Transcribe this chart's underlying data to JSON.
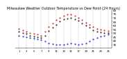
{
  "title": "Milwaukee Weather Outdoor Temperature vs Dew Point (24 Hours)",
  "title_fontsize": 3.5,
  "background_color": "#ffffff",
  "hours": [
    1,
    2,
    3,
    4,
    5,
    6,
    7,
    8,
    9,
    10,
    11,
    12,
    13,
    14,
    15,
    16,
    17,
    18,
    19,
    20,
    21,
    22,
    23,
    24,
    25
  ],
  "temp": [
    56,
    54,
    52,
    50,
    49,
    48,
    47,
    52,
    58,
    63,
    67,
    70,
    73,
    74,
    74,
    73,
    70,
    67,
    64,
    61,
    58,
    56,
    55,
    54,
    53
  ],
  "dew": [
    47,
    46,
    45,
    44,
    43,
    42,
    41,
    39,
    37,
    36,
    35,
    35,
    35,
    36,
    37,
    36,
    35,
    36,
    37,
    39,
    42,
    44,
    46,
    47,
    48
  ],
  "feels": [
    52,
    50,
    49,
    47,
    46,
    45,
    44,
    47,
    53,
    57,
    61,
    65,
    68,
    69,
    70,
    68,
    66,
    63,
    60,
    57,
    54,
    52,
    51,
    50,
    50
  ],
  "temp_color": "#cc0000",
  "dew_color": "#0000cc",
  "feels_color": "#000000",
  "ylim": [
    30,
    80
  ],
  "yticks": [
    35,
    40,
    45,
    50,
    55,
    60,
    65,
    70,
    75,
    80
  ],
  "ytick_labels": [
    "35",
    "40",
    "45",
    "50",
    "55",
    "60",
    "65",
    "70",
    "75",
    "80"
  ],
  "ylabel_fontsize": 3.0,
  "xlabel_fontsize": 2.8,
  "grid_color": "#999999",
  "marker_size": 0.9,
  "xtick_positions": [
    1,
    3,
    5,
    7,
    9,
    11,
    13,
    15,
    17,
    19,
    21,
    23,
    25
  ],
  "xtick_labels": [
    "1",
    "3",
    "5",
    "7",
    "9",
    "11",
    "13",
    "15",
    "17",
    "19",
    "21",
    "23",
    "25"
  ]
}
